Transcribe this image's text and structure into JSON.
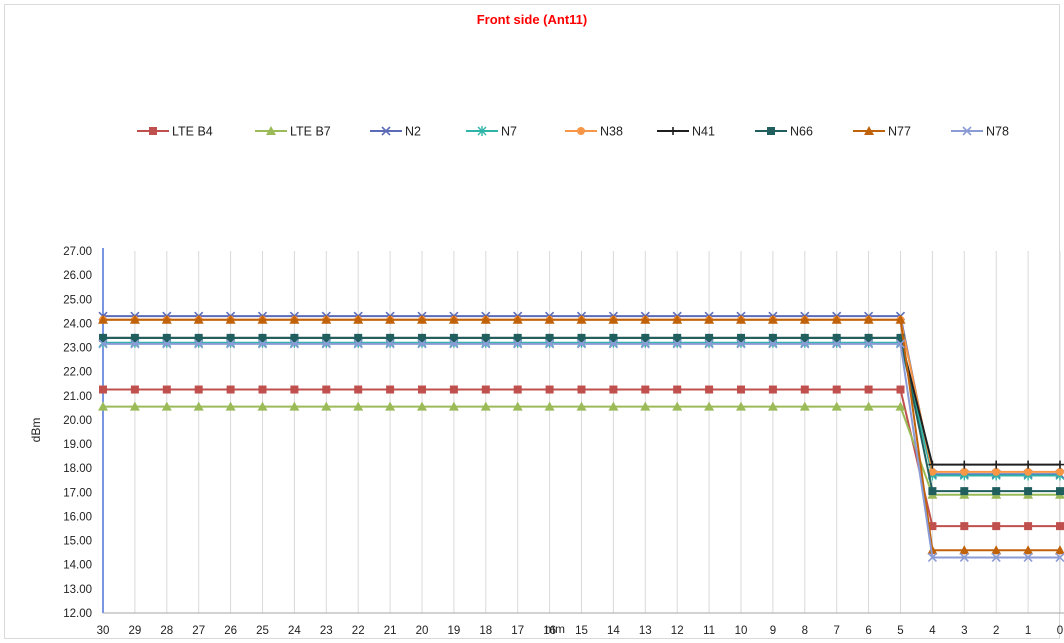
{
  "chart_data": {
    "type": "line",
    "title": "Front side (Ant11)",
    "title_color": "#ff0000",
    "xlabel": "mm",
    "ylabel": "dBm",
    "ylim": [
      12,
      27
    ],
    "y_ticks": [
      "12.00",
      "13.00",
      "14.00",
      "15.00",
      "16.00",
      "17.00",
      "18.00",
      "19.00",
      "20.00",
      "21.00",
      "22.00",
      "23.00",
      "24.00",
      "25.00",
      "26.00",
      "27.00"
    ],
    "categories": [
      "30",
      "29",
      "28",
      "27",
      "26",
      "25",
      "24",
      "23",
      "22",
      "21",
      "20",
      "19",
      "18",
      "17",
      "16",
      "15",
      "14",
      "13",
      "12",
      "11",
      "10",
      "9",
      "8",
      "7",
      "6",
      "5",
      "4",
      "3",
      "2",
      "1",
      "0"
    ],
    "grid": "vertical",
    "legend_position": "top",
    "series": [
      {
        "name": "LTE B4",
        "color": "#c0504d",
        "marker": "square",
        "high": 21.26,
        "low": 15.6
      },
      {
        "name": "LTE B7",
        "color": "#9bbb59",
        "marker": "triangle",
        "high": 20.55,
        "low": 16.9
      },
      {
        "name": "N2",
        "color": "#5c6bb8",
        "marker": "x",
        "high": 24.3,
        "low": 17.75
      },
      {
        "name": "N7",
        "color": "#2fb5a8",
        "marker": "star",
        "high": 23.2,
        "low": 17.7
      },
      {
        "name": "N38",
        "color": "#f79646",
        "marker": "circle",
        "high": 24.15,
        "low": 17.85
      },
      {
        "name": "N41",
        "color": "#1f1f1f",
        "marker": "plus",
        "high": 23.4,
        "low": 18.15
      },
      {
        "name": "N66",
        "color": "#215f5f",
        "marker": "square",
        "high": 23.4,
        "low": 17.05
      },
      {
        "name": "N77",
        "color": "#c0620a",
        "marker": "triangle",
        "high": 24.15,
        "low": 14.6
      },
      {
        "name": "N78",
        "color": "#8b9bd6",
        "marker": "x",
        "high": 23.15,
        "low": 14.3
      }
    ]
  }
}
